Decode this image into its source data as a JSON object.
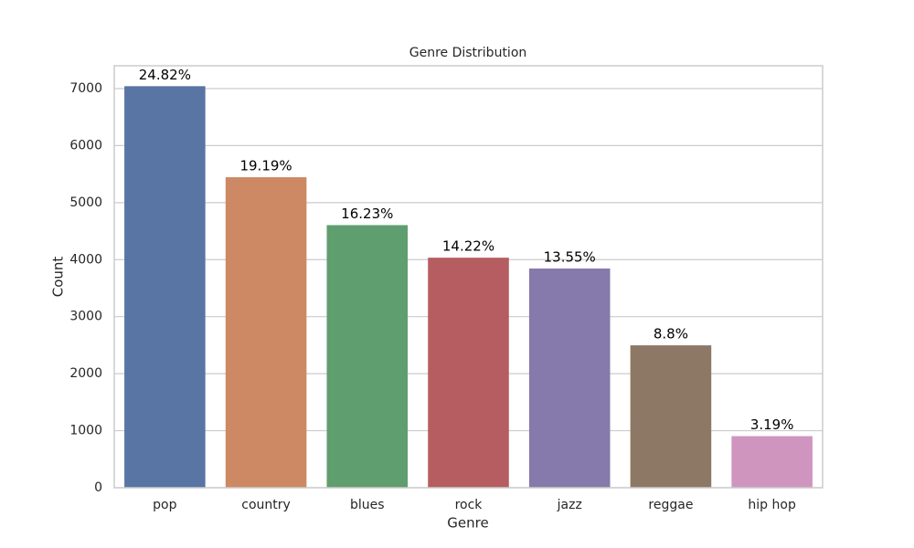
{
  "chart_data": {
    "type": "bar",
    "title": "Genre Distribution",
    "x_label": "Genre",
    "y_label": "Count",
    "categories": [
      "pop",
      "country",
      "blues",
      "rock",
      "jazz",
      "reggae",
      "hip hop"
    ],
    "values": [
      7042,
      5445,
      4605,
      4034,
      3844,
      2497,
      905
    ],
    "annotations": [
      "24.82%",
      "19.19%",
      "16.23%",
      "14.22%",
      "13.55%",
      "8.8%",
      "3.19%"
    ],
    "colors": [
      "#5875a4",
      "#cc8963",
      "#5f9e6e",
      "#b55d60",
      "#857aab",
      "#8d7866",
      "#d095bf"
    ],
    "ylim": [
      0,
      7400
    ],
    "yticks": [
      0,
      1000,
      2000,
      3000,
      4000,
      5000,
      6000,
      7000
    ],
    "grid": true
  }
}
